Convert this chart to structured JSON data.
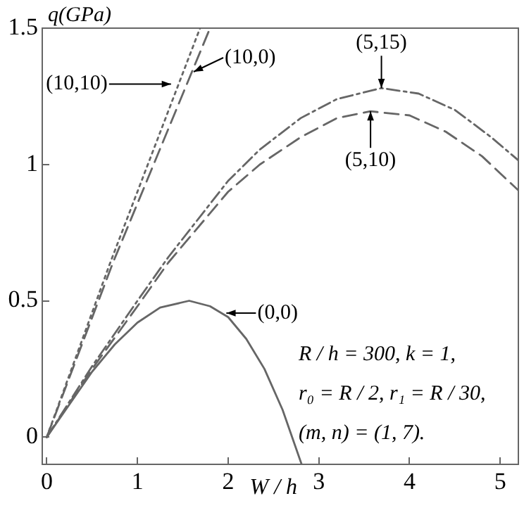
{
  "chart_data": {
    "type": "line",
    "xlabel": "W / h",
    "ylabel": "q(GPa)",
    "xlim": [
      -0.05,
      5.2
    ],
    "xticks": [
      0,
      1,
      2,
      3,
      4,
      5
    ],
    "ylim": [
      -0.1,
      1.5
    ],
    "yticks": [
      0,
      0.5,
      1,
      1.5
    ],
    "grid": false,
    "legend": false,
    "marker": "none",
    "series": [
      {
        "color": "#666666",
        "line_style": "solid",
        "x": [
          0,
          0.25,
          0.5,
          0.75,
          1,
          1.25,
          1.57,
          1.8,
          2,
          2.2,
          2.4,
          2.6,
          2.81
        ],
        "values": [
          0,
          0.12,
          0.24,
          0.34,
          0.42,
          0.475,
          0.5,
          0.48,
          0.44,
          0.36,
          0.25,
          0.1,
          -0.1
        ]
      },
      {
        "color": "#666666",
        "line_style": "dashed",
        "x": [
          0,
          0.5,
          1,
          1.34,
          2,
          2.35,
          2.8,
          3.2,
          3.57,
          4,
          4.4,
          4.8,
          5.2
        ],
        "values": [
          0,
          0.25,
          0.48,
          0.64,
          0.9,
          1.0,
          1.1,
          1.17,
          1.195,
          1.18,
          1.12,
          1.03,
          0.905
        ]
      },
      {
        "color": "#666666",
        "line_style": "dashdot",
        "x": [
          0,
          0.5,
          1,
          1.34,
          2,
          2.35,
          2.8,
          3.2,
          3.69,
          4.1,
          4.5,
          4.9,
          5.2
        ],
        "values": [
          0,
          0.26,
          0.5,
          0.66,
          0.94,
          1.055,
          1.17,
          1.24,
          1.28,
          1.26,
          1.2,
          1.1,
          1.015
        ]
      },
      {
        "color": "#666666",
        "line_style": "dotted",
        "x": [
          0,
          0.7,
          1.69
        ],
        "values": [
          0,
          0.64,
          1.5
        ]
      },
      {
        "color": "#666666",
        "line_style": "dashed",
        "x": [
          0,
          0.73,
          1.8
        ],
        "values": [
          0,
          0.64,
          1.5
        ]
      }
    ],
    "annotations": [
      {
        "text": "(10,10)",
        "x": 1.37,
        "y": 1.295
      },
      {
        "text": "(10,0)",
        "x": 1.62,
        "y": 1.34
      },
      {
        "text": "(5,15)",
        "x": 3.69,
        "y": 1.28
      },
      {
        "text": "(5,10)",
        "x": 3.57,
        "y": 1.195
      },
      {
        "text": "(0,0)",
        "x": 1.98,
        "y": 0.455
      },
      "R / h = 300, k = 1,",
      "r₀ = R / 2, r₁ = R / 30,",
      "(m, n) = (1, 7)."
    ]
  }
}
